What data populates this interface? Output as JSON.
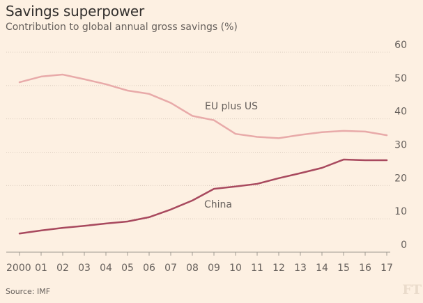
{
  "chart_data": {
    "type": "line",
    "title": "Savings superpower",
    "subtitle": "Contribution to global annual gross savings (%)",
    "xlabel": "",
    "ylabel": "",
    "x": [
      "2000",
      "01",
      "02",
      "03",
      "04",
      "05",
      "06",
      "07",
      "08",
      "09",
      "10",
      "11",
      "12",
      "13",
      "14",
      "15",
      "16",
      "17"
    ],
    "ylim": [
      0,
      60
    ],
    "yticks": [
      "0",
      "10",
      "20",
      "30",
      "40",
      "50",
      "60"
    ],
    "grid": true,
    "series": [
      {
        "name": "EU plus US",
        "color": "#e8aaa9",
        "values": [
          51.0,
          52.7,
          53.3,
          51.9,
          50.4,
          48.5,
          47.5,
          44.8,
          40.9,
          39.6,
          35.5,
          34.6,
          34.2,
          35.2,
          36.0,
          36.4,
          36.2,
          35.1
        ]
      },
      {
        "name": "China",
        "color": "#a8495e",
        "values": [
          5.6,
          6.5,
          7.3,
          7.9,
          8.6,
          9.2,
          10.5,
          12.8,
          15.5,
          19.0,
          19.7,
          20.5,
          22.2,
          23.7,
          25.3,
          27.8,
          27.6,
          27.6
        ]
      }
    ],
    "annotations": [
      {
        "text": "EU plus US",
        "series": "EU plus US"
      },
      {
        "text": "China",
        "series": "China"
      }
    ],
    "legend": "inline labels"
  },
  "source": "Source: IMF",
  "logo": "FT"
}
